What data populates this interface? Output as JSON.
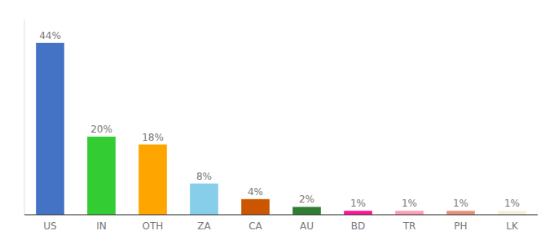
{
  "chart_data": {
    "type": "bar",
    "categories": [
      "US",
      "IN",
      "OTH",
      "ZA",
      "CA",
      "AU",
      "BD",
      "TR",
      "PH",
      "LK"
    ],
    "values": [
      44,
      20,
      18,
      8,
      4,
      2,
      1,
      1,
      1,
      1
    ],
    "value_labels": [
      "44%",
      "20%",
      "18%",
      "8%",
      "4%",
      "2%",
      "1%",
      "1%",
      "1%",
      "1%"
    ],
    "colors": [
      "#4472C4",
      "#33CC33",
      "#FFA500",
      "#87CEEB",
      "#CC5500",
      "#2E7D32",
      "#FF1493",
      "#FF9EB5",
      "#E8907A",
      "#F5F0DC"
    ],
    "ylim": [
      0,
      50
    ],
    "data_labels": true,
    "tick_labels": "x",
    "grid": false
  }
}
